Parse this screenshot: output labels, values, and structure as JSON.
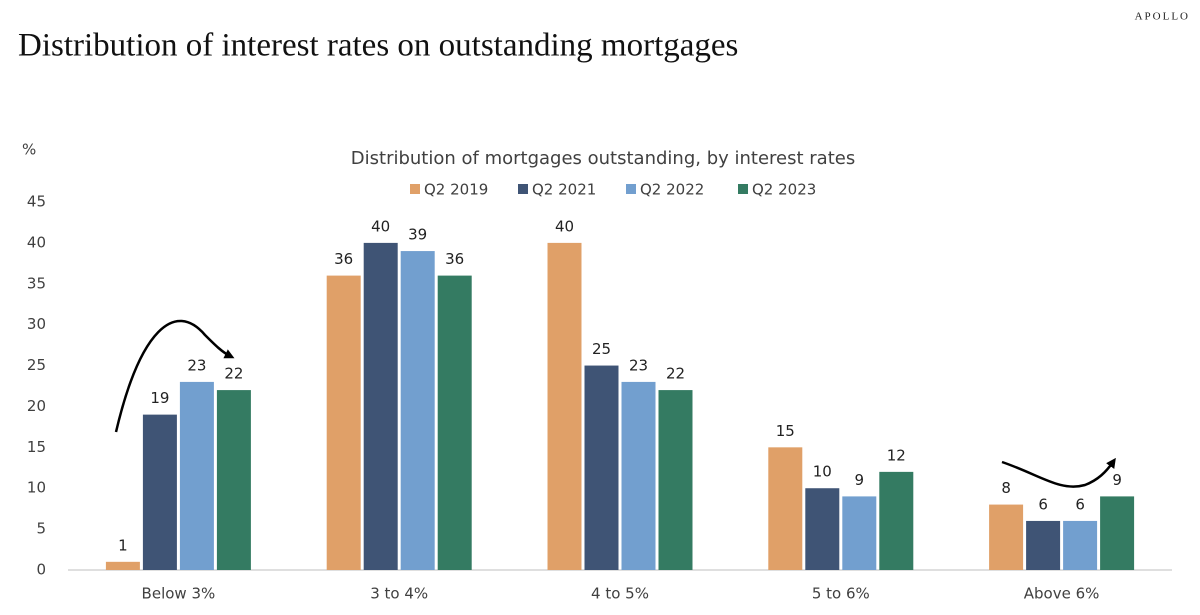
{
  "brand": "APOLLO",
  "chart_data": {
    "type": "bar",
    "title": "Distribution of interest rates on outstanding mortgages",
    "subtitle": "Distribution of mortgages outstanding, by interest rates",
    "y_label": "%",
    "categories": [
      "Below 3%",
      "3 to 4%",
      "4 to 5%",
      "5 to 6%",
      "Above 6%"
    ],
    "series": [
      {
        "name": "Q2 2019",
        "color": "#e0a068",
        "values": [
          1,
          36,
          40,
          15,
          8
        ]
      },
      {
        "name": "Q2 2021",
        "color": "#3f5475",
        "values": [
          19,
          40,
          25,
          10,
          6
        ]
      },
      {
        "name": "Q2 2022",
        "color": "#729fcf",
        "values": [
          23,
          39,
          23,
          9,
          6
        ]
      },
      {
        "name": "Q2 2023",
        "color": "#347b62",
        "values": [
          22,
          36,
          22,
          12,
          9
        ]
      }
    ],
    "ylim": [
      0,
      45
    ],
    "yticks": [
      0,
      5,
      10,
      15,
      20,
      25,
      30,
      35,
      40,
      45
    ],
    "grid": false
  }
}
